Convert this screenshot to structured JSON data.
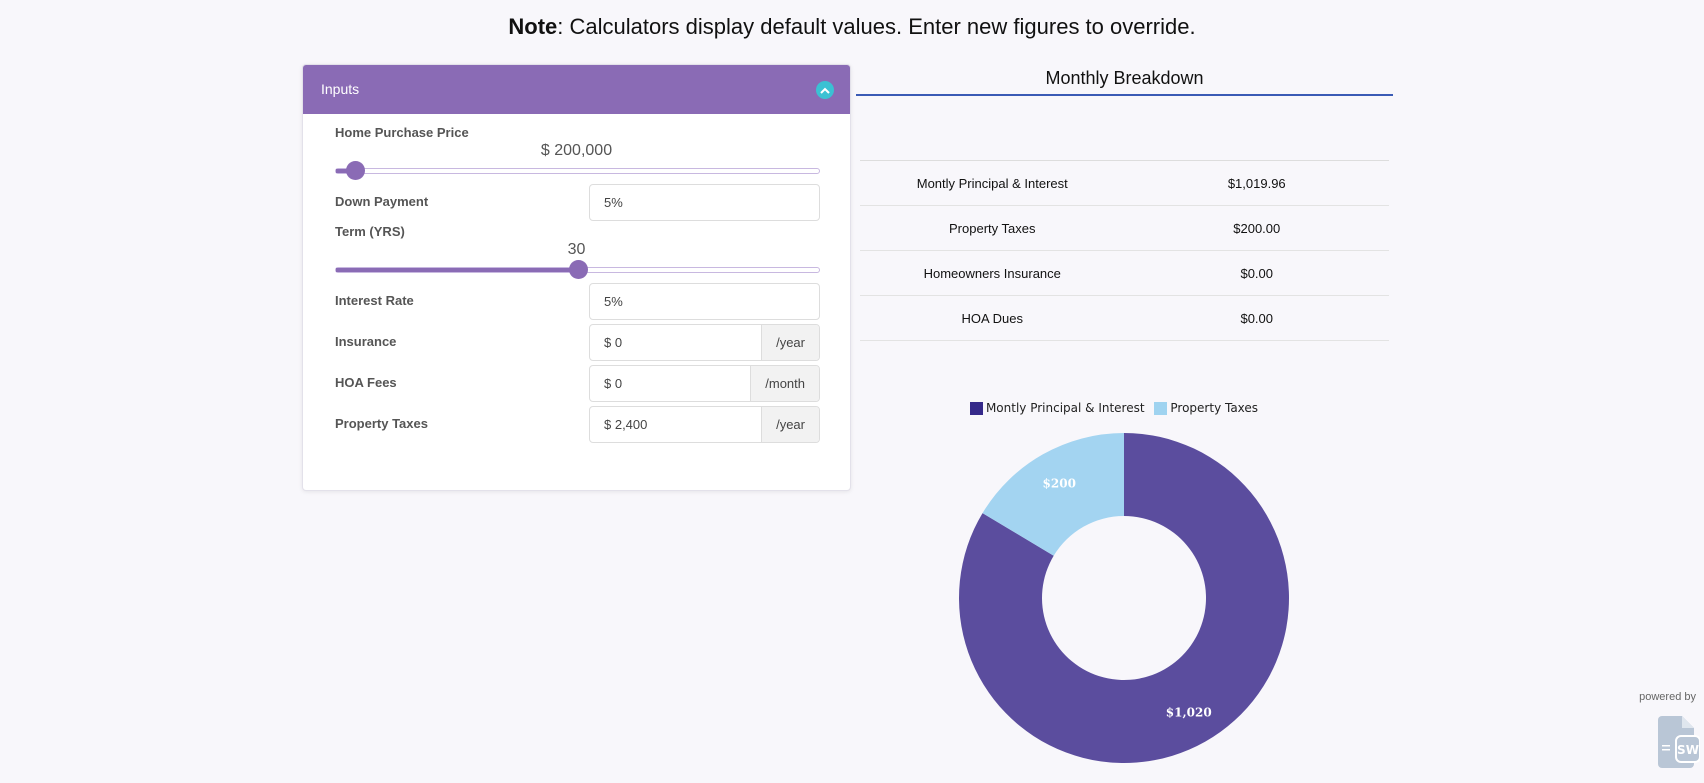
{
  "note": {
    "bold": "Note",
    "text": ": Calculators display default values. Enter new figures to override."
  },
  "inputs": {
    "title": "Inputs",
    "collapse_icon": "chevron-up-icon",
    "home_price": {
      "label": "Home Purchase Price",
      "value": "$ 200,000",
      "slider_fraction": 0.04
    },
    "down_payment": {
      "label": "Down Payment",
      "value": "5%"
    },
    "term": {
      "label": "Term (YRS)",
      "value": "30",
      "slider_fraction": 0.5
    },
    "interest_rate": {
      "label": "Interest Rate",
      "value": "5%"
    },
    "insurance": {
      "label": "Insurance",
      "value": "$ 0",
      "unit": "/year"
    },
    "hoa": {
      "label": "HOA Fees",
      "value": "$ 0",
      "unit": "/month"
    },
    "property_taxes": {
      "label": "Property Taxes",
      "value": "$ 2,400",
      "unit": "/year"
    }
  },
  "breakdown": {
    "title": "Monthly Breakdown",
    "rows": [
      {
        "label": "Montly Principal & Interest",
        "value": "$1,019.96"
      },
      {
        "label": "Property Taxes",
        "value": "$200.00"
      },
      {
        "label": "Homeowners Insurance",
        "value": "$0.00"
      },
      {
        "label": "HOA Dues",
        "value": "$0.00"
      }
    ]
  },
  "chart_data": {
    "type": "pie",
    "donut": true,
    "legend_placement": "top",
    "slices": [
      {
        "name": "Montly Principal & Interest",
        "value": 1019.96,
        "label": "$1,020",
        "color": "#5b4d9e",
        "legend_color": "#35298a"
      },
      {
        "name": "Property Taxes",
        "value": 200,
        "label": "$200",
        "color": "#a3d4f1",
        "legend_color": "#9fd3f0"
      }
    ]
  },
  "footer": {
    "powered_by": "powered by",
    "logo_text": "SW"
  },
  "colors": {
    "accent": "#8a6bb5",
    "collapse": "#3bc1d3",
    "title_line": "#3b5bb5"
  }
}
